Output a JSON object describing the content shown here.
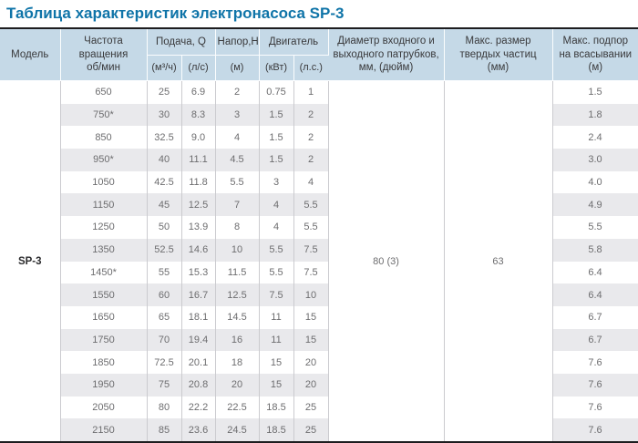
{
  "title": "Таблица характеристик электронасоса SP-3",
  "colors": {
    "title_text": "#0f74a8",
    "header_background": "#c5d9e7",
    "row_stripe": "#e9e9ec",
    "thick_border": "#1d1d1f",
    "cell_separator": "#cbcbcf",
    "data_text": "#6d6d6f",
    "header_text": "#39393b"
  },
  "table": {
    "header": {
      "model": "Модель",
      "speed_lines": [
        "Частота",
        "вращения",
        "об/мин"
      ],
      "flow_group": "Подача, Q",
      "flow_units": [
        "(м³/ч)",
        "(л/с)"
      ],
      "head_group": "Напор,Н",
      "head_unit": "(м)",
      "motor_group": "Двигатель",
      "motor_units": [
        "(кВт)",
        "(л.с.)"
      ],
      "diameter_lines": [
        "Диаметр входного и",
        "выходного патрубков,",
        "мм, (дюйм)"
      ],
      "particle_lines": [
        "Макс. размер",
        "твердых частиц",
        "(мм)"
      ],
      "suction_lines": [
        "Макс. подпор",
        "на всасывании",
        "(м)"
      ]
    },
    "model_value": "SP-3",
    "diameter_value": "80 (3)",
    "max_particle_value": "63",
    "rows": [
      {
        "speed": "650",
        "flow_m3h": "25",
        "flow_ls": "6.9",
        "head_m": "2",
        "power_kw": "0.75",
        "power_hp": "1",
        "suction_m": "1.5"
      },
      {
        "speed": "750*",
        "flow_m3h": "30",
        "flow_ls": "8.3",
        "head_m": "3",
        "power_kw": "1.5",
        "power_hp": "2",
        "suction_m": "1.8"
      },
      {
        "speed": "850",
        "flow_m3h": "32.5",
        "flow_ls": "9.0",
        "head_m": "4",
        "power_kw": "1.5",
        "power_hp": "2",
        "suction_m": "2.4"
      },
      {
        "speed": "950*",
        "flow_m3h": "40",
        "flow_ls": "11.1",
        "head_m": "4.5",
        "power_kw": "1.5",
        "power_hp": "2",
        "suction_m": "3.0"
      },
      {
        "speed": "1050",
        "flow_m3h": "42.5",
        "flow_ls": "11.8",
        "head_m": "5.5",
        "power_kw": "3",
        "power_hp": "4",
        "suction_m": "4.0"
      },
      {
        "speed": "1150",
        "flow_m3h": "45",
        "flow_ls": "12.5",
        "head_m": "7",
        "power_kw": "4",
        "power_hp": "5.5",
        "suction_m": "4.9"
      },
      {
        "speed": "1250",
        "flow_m3h": "50",
        "flow_ls": "13.9",
        "head_m": "8",
        "power_kw": "4",
        "power_hp": "5.5",
        "suction_m": "5.5"
      },
      {
        "speed": "1350",
        "flow_m3h": "52.5",
        "flow_ls": "14.6",
        "head_m": "10",
        "power_kw": "5.5",
        "power_hp": "7.5",
        "suction_m": "5.8"
      },
      {
        "speed": "1450*",
        "flow_m3h": "55",
        "flow_ls": "15.3",
        "head_m": "11.5",
        "power_kw": "5.5",
        "power_hp": "7.5",
        "suction_m": "6.4"
      },
      {
        "speed": "1550",
        "flow_m3h": "60",
        "flow_ls": "16.7",
        "head_m": "12.5",
        "power_kw": "7.5",
        "power_hp": "10",
        "suction_m": "6.4"
      },
      {
        "speed": "1650",
        "flow_m3h": "65",
        "flow_ls": "18.1",
        "head_m": "14.5",
        "power_kw": "11",
        "power_hp": "15",
        "suction_m": "6.7"
      },
      {
        "speed": "1750",
        "flow_m3h": "70",
        "flow_ls": "19.4",
        "head_m": "16",
        "power_kw": "11",
        "power_hp": "15",
        "suction_m": "6.7"
      },
      {
        "speed": "1850",
        "flow_m3h": "72.5",
        "flow_ls": "20.1",
        "head_m": "18",
        "power_kw": "15",
        "power_hp": "20",
        "suction_m": "7.6"
      },
      {
        "speed": "1950",
        "flow_m3h": "75",
        "flow_ls": "20.8",
        "head_m": "20",
        "power_kw": "15",
        "power_hp": "20",
        "suction_m": "7.6"
      },
      {
        "speed": "2050",
        "flow_m3h": "80",
        "flow_ls": "22.2",
        "head_m": "22.5",
        "power_kw": "18.5",
        "power_hp": "25",
        "suction_m": "7.6"
      },
      {
        "speed": "2150",
        "flow_m3h": "85",
        "flow_ls": "23.6",
        "head_m": "24.5",
        "power_kw": "18.5",
        "power_hp": "25",
        "suction_m": "7.6"
      }
    ]
  }
}
